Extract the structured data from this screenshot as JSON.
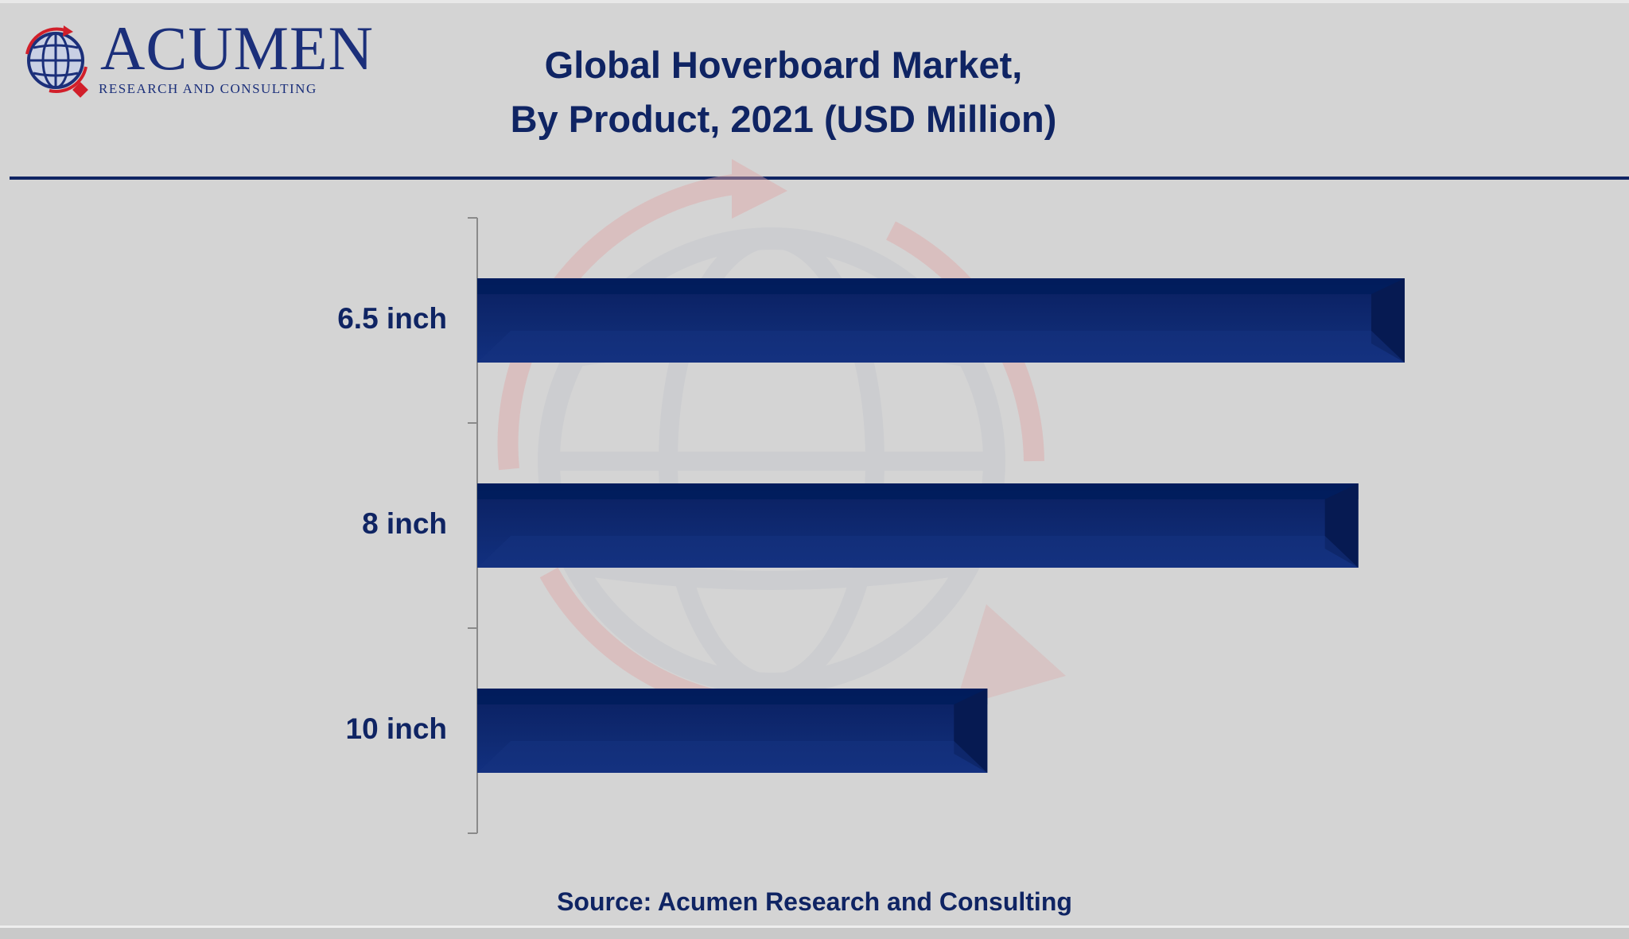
{
  "brand": {
    "name": "ACUMEN",
    "tagline": "RESEARCH AND CONSULTING",
    "colors": {
      "navy": "#0f2463",
      "logo_blue": "#1b2f7a",
      "logo_red": "#d11f2a"
    },
    "icon": "globe-arrows-logo-icon"
  },
  "header": {
    "title_line1": "Global Hoverboard Market,",
    "title_line2": "By Product, 2021 (USD Million)"
  },
  "source": "Source: Acumen Research and Consulting",
  "chart_data": {
    "type": "bar",
    "orientation": "horizontal",
    "title": "Global Hoverboard Market, By Product, 2021 (USD Million)",
    "categories": [
      "6.5 inch",
      "8 inch",
      "10 inch"
    ],
    "values": [
      100,
      95,
      55
    ],
    "xlim": [
      0,
      100
    ],
    "grid": false,
    "legend": "none",
    "bar_color": "#0f2463"
  }
}
